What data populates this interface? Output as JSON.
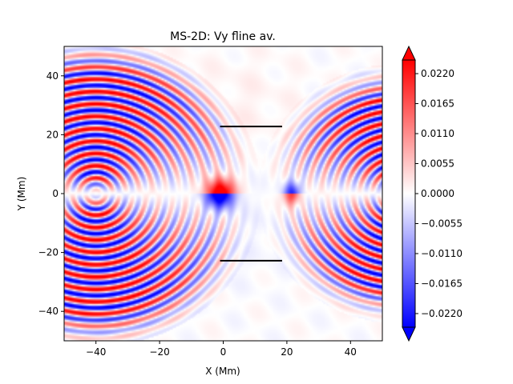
{
  "chart_data": {
    "type": "heatmap",
    "title": "MS-2D: Vy fline av.",
    "xlabel": "X (Mm)",
    "ylabel": "Y (Mm)",
    "xlim": [
      -50,
      50
    ],
    "ylim": [
      -50,
      50
    ],
    "xticks": [
      -40,
      -20,
      0,
      20,
      40
    ],
    "yticks": [
      -40,
      -20,
      0,
      20,
      40
    ],
    "xtick_labels": [
      "−40",
      "−20",
      "0",
      "20",
      "40"
    ],
    "ytick_labels": [
      "−40",
      "−20",
      "0",
      "20",
      "40"
    ],
    "colormap": "bwr",
    "colorbar": {
      "vmin": -0.0245,
      "vmax": 0.0245,
      "extend": "both",
      "ticks": [
        -0.022,
        -0.0165,
        -0.011,
        -0.0055,
        0.0,
        0.0055,
        0.011,
        0.0165,
        0.022
      ],
      "tick_labels": [
        "−0.0220",
        "−0.0165",
        "−0.0110",
        "−0.0055",
        "0.0000",
        "0.0055",
        "0.0110",
        "0.0165",
        "0.0220"
      ]
    },
    "overlay_lines": [
      {
        "name": "upper-line",
        "x": [
          -1,
          18.5
        ],
        "y": [
          22.8,
          22.8
        ],
        "color": "#000000"
      },
      {
        "name": "lower-line",
        "x": [
          -1,
          18.5
        ],
        "y": [
          -22.8,
          -22.8
        ],
        "color": "#000000"
      }
    ],
    "wave_sources": [
      {
        "name": "left-source",
        "center": [
          -40,
          0
        ],
        "ring_spacing": 4.2,
        "max_radius": 52
      },
      {
        "name": "right-source",
        "center": [
          55,
          0
        ],
        "ring_spacing": 4.0,
        "max_radius": 44
      }
    ],
    "colors": {
      "positive": "#ff0000",
      "negative": "#0000ff",
      "zero": "#ffffff"
    }
  }
}
